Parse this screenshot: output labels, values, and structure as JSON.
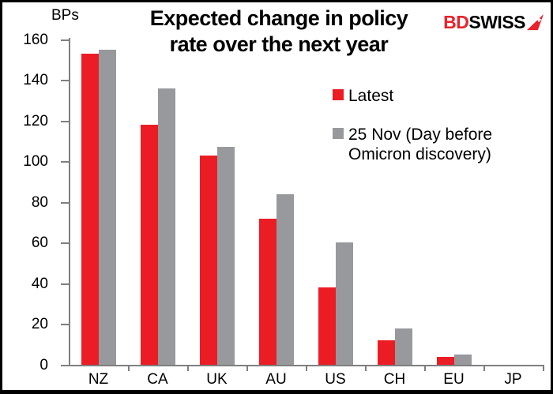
{
  "title_lines": [
    "Expected change in policy",
    "rate over the next year"
  ],
  "logo": {
    "bd": "BD",
    "swiss": "SWISS",
    "arrow_icon": "swiss-cross-pennant"
  },
  "colors": {
    "latest_red": "#EC1C24",
    "nov25_gray": "#97999C",
    "axis_gray": "#7F7F7F",
    "logo_red": "#E8232B",
    "text": "#000000",
    "background": "#FFFFFF"
  },
  "chart_data": {
    "type": "bar",
    "title": "Expected change in policy rate over the next year",
    "xlabel": "",
    "ylabel": "BPs",
    "ylim": [
      0,
      160
    ],
    "yticks": [
      0,
      20,
      40,
      60,
      80,
      100,
      120,
      140,
      160
    ],
    "grid": false,
    "legend_position": "upper-right-inside",
    "categories": [
      "NZ",
      "CA",
      "UK",
      "AU",
      "US",
      "CH",
      "EU",
      "JP"
    ],
    "series": [
      {
        "name": "Latest",
        "color": "#EC1C24",
        "values": [
          153,
          118,
          103,
          72,
          38,
          12,
          4,
          0
        ]
      },
      {
        "name": "25 Nov (Day before Omicron discovery)",
        "color": "#97999C",
        "values": [
          155,
          136,
          107,
          84,
          60,
          18,
          5,
          0
        ]
      }
    ]
  }
}
